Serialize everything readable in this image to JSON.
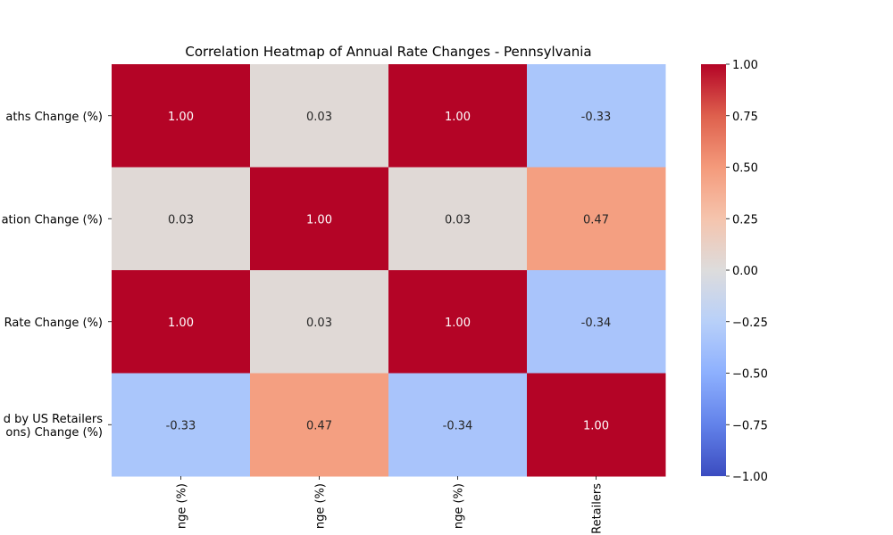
{
  "chart_data": {
    "type": "heatmap",
    "title": "Correlation Heatmap of Annual Rate Changes - Pennsylvania",
    "row_labels": [
      [
        "aths Change (%)"
      ],
      [
        "ation Change (%)"
      ],
      [
        "Rate Change (%)"
      ],
      [
        "d by US Retailers",
        "ons) Change (%)"
      ]
    ],
    "col_labels": [
      "nge (%)",
      "nge (%)",
      "nge (%)",
      "Retailers"
    ],
    "values": [
      [
        1.0,
        0.03,
        1.0,
        -0.33
      ],
      [
        0.03,
        1.0,
        0.03,
        0.47
      ],
      [
        1.0,
        0.03,
        1.0,
        -0.34
      ],
      [
        -0.33,
        0.47,
        -0.34,
        1.0
      ]
    ],
    "value_labels": [
      [
        "1.00",
        "0.03",
        "1.00",
        "-0.33"
      ],
      [
        "0.03",
        "1.00",
        "0.03",
        "0.47"
      ],
      [
        "1.00",
        "0.03",
        "1.00",
        "-0.34"
      ],
      [
        "-0.33",
        "0.47",
        "-0.34",
        "1.00"
      ]
    ],
    "colormap": "coolwarm",
    "vmin": -1.0,
    "vmax": 1.0,
    "colorbar_ticks": [
      "1.00",
      "0.75",
      "0.50",
      "0.25",
      "0.00",
      "−0.25",
      "−0.50",
      "−0.75",
      "−1.00"
    ],
    "colorbar_tick_values": [
      1.0,
      0.75,
      0.5,
      0.25,
      0.0,
      -0.25,
      -0.5,
      -0.75,
      -1.0
    ],
    "grid": false
  }
}
